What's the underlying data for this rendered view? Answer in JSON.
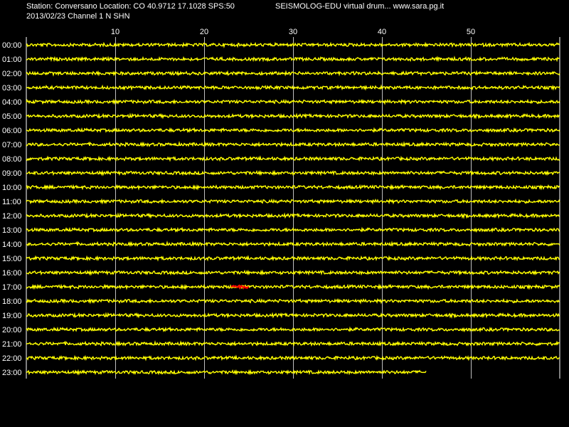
{
  "header": {
    "station_line": "Station: Conversano Location: CO 40.9712 17.1028 SPS:50",
    "app_line": "SEISMOLOG-EDU virtual drum... www.sara.pg.it",
    "date_line": "2013/02/23  Channel 1 N SHN"
  },
  "colors": {
    "background": "#000000",
    "trace": "#ffff00",
    "event": "#ff0000",
    "grid": "#ffffff",
    "text": "#ffffff"
  },
  "chart_data": {
    "type": "line",
    "xlabel": "",
    "ylabel": "",
    "xlim": [
      0,
      60
    ],
    "x_ticks": [
      10,
      20,
      30,
      40,
      50
    ],
    "x_tick_labels": [
      "10",
      "20",
      "30",
      "40",
      "50"
    ],
    "grid": true,
    "legend": "none",
    "rows": [
      {
        "label": "00:00",
        "end_minute": 60
      },
      {
        "label": "01:00",
        "end_minute": 60
      },
      {
        "label": "02:00",
        "end_minute": 60
      },
      {
        "label": "03:00",
        "end_minute": 60
      },
      {
        "label": "04:00",
        "end_minute": 60
      },
      {
        "label": "05:00",
        "end_minute": 60
      },
      {
        "label": "06:00",
        "end_minute": 60
      },
      {
        "label": "07:00",
        "end_minute": 60
      },
      {
        "label": "08:00",
        "end_minute": 60
      },
      {
        "label": "09:00",
        "end_minute": 60
      },
      {
        "label": "10:00",
        "end_minute": 60
      },
      {
        "label": "11:00",
        "end_minute": 60
      },
      {
        "label": "12:00",
        "end_minute": 60
      },
      {
        "label": "13:00",
        "end_minute": 60
      },
      {
        "label": "14:00",
        "end_minute": 60
      },
      {
        "label": "15:00",
        "end_minute": 60
      },
      {
        "label": "16:00",
        "end_minute": 60
      },
      {
        "label": "17:00",
        "end_minute": 60
      },
      {
        "label": "18:00",
        "end_minute": 60
      },
      {
        "label": "19:00",
        "end_minute": 60
      },
      {
        "label": "20:00",
        "end_minute": 60
      },
      {
        "label": "21:00",
        "end_minute": 60
      },
      {
        "label": "22:00",
        "end_minute": 60
      },
      {
        "label": "23:00",
        "end_minute": 45
      }
    ],
    "events": [
      {
        "row": "17:00",
        "start_minute": 23,
        "end_minute": 25
      }
    ]
  }
}
